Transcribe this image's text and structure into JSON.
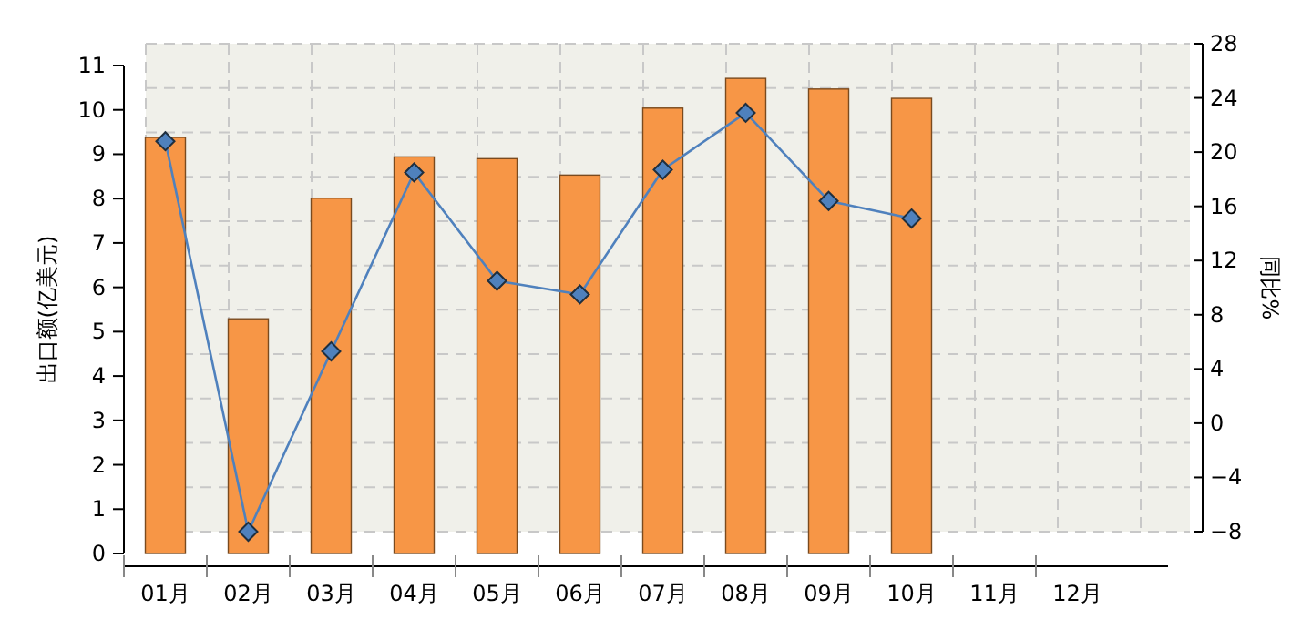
{
  "chart_data": {
    "type": "bar",
    "categories": [
      "01月",
      "02月",
      "03月",
      "04月",
      "05月",
      "06月",
      "07月",
      "08月",
      "09月",
      "10月",
      "11月",
      "12月"
    ],
    "series": [
      {
        "color": "#f79646",
        "values": [
          9.38,
          5.29,
          8.01,
          8.94,
          8.9,
          8.53,
          10.04,
          10.71,
          10.47,
          10.26,
          null,
          null
        ]
      },
      {
        "type": "line",
        "axis": "y2",
        "color": "#4f81bd",
        "marker": "diamond",
        "values": [
          20.8,
          -8,
          5.3,
          18.5,
          10.5,
          9.5,
          18.7,
          22.9,
          16.4,
          15.1,
          null,
          null
        ]
      }
    ],
    "ylabel": "出口额(亿美元)",
    "y2label": "同比%",
    "ylim": [
      0,
      11
    ],
    "yticks": [
      0,
      1,
      2,
      3,
      4,
      5,
      6,
      7,
      8,
      9,
      10,
      11
    ],
    "y2lim": [
      -8,
      28
    ],
    "y2ticks": [
      -8,
      -4,
      0,
      4,
      8,
      12,
      16,
      20,
      24,
      28
    ],
    "grid": true
  }
}
